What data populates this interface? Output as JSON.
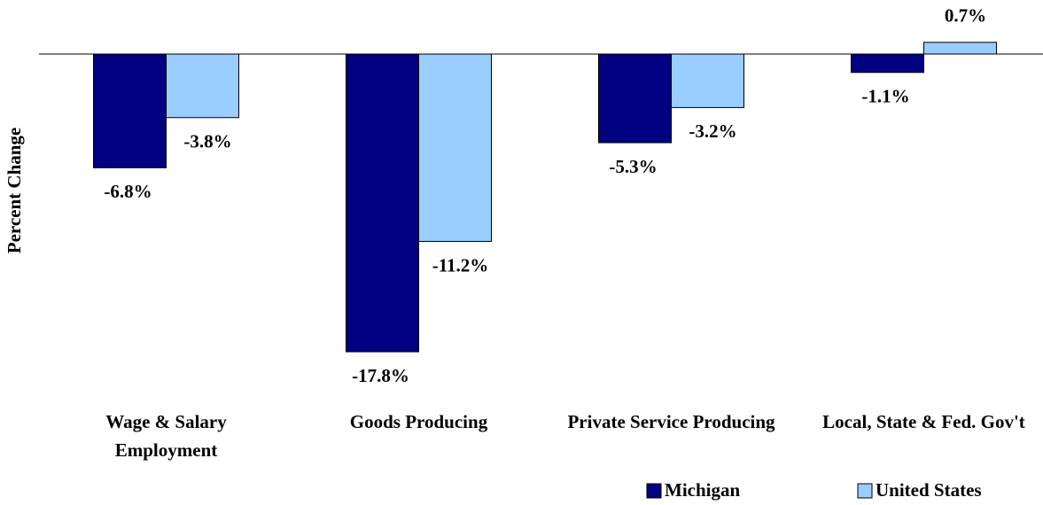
{
  "chart_data": {
    "type": "bar",
    "y_label": "Percent Change",
    "categories": [
      "Wage & Salary Employment",
      "Goods Producing",
      "Private Service Producing",
      "Local, State & Fed. Gov't"
    ],
    "series": [
      {
        "name": "Michigan",
        "color": "#000080",
        "values": [
          -6.8,
          -17.8,
          -5.3,
          -1.1
        ],
        "value_labels": [
          "-6.8%",
          "-17.8%",
          "-5.3%",
          "-1.1%"
        ]
      },
      {
        "name": "United States",
        "color": "#99ccff",
        "values": [
          -3.8,
          -11.2,
          -3.2,
          0.7
        ],
        "value_labels": [
          "-3.8%",
          "-11.2%",
          "-3.2%",
          "0.7%"
        ]
      }
    ],
    "ylim": [
      -18,
      1
    ],
    "legend": "bottom-right"
  }
}
